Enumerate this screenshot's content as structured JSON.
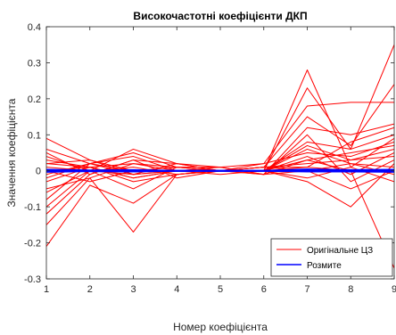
{
  "chart_data": {
    "type": "line",
    "title": "Високочастотні коефіцієнти ДКП",
    "xlabel": "Номер коефіцієнта",
    "ylabel": "Значення коефіцієнта",
    "xlim": [
      1,
      9
    ],
    "ylim": [
      -0.3,
      0.4
    ],
    "x_ticks": [
      "1",
      "2",
      "3",
      "4",
      "5",
      "6",
      "7",
      "8",
      "9"
    ],
    "y_ticks": [
      "0.4",
      "0.3",
      "0.2",
      "0.1",
      "0",
      "-0.1",
      "-0.2",
      "-0.3"
    ],
    "grid": false,
    "legend_position": "bottom-right",
    "legend": [
      {
        "label": "Оригінальне ЦЗ",
        "color": "#ff0000"
      },
      {
        "label": "Розмите",
        "color": "#0000ff"
      }
    ],
    "x": [
      1,
      2,
      3,
      4,
      5,
      6,
      7,
      8,
      9
    ],
    "series_groups": [
      {
        "name": "Оригінальне ЦЗ",
        "color": "#ff0000",
        "lines": [
          [
            -0.21,
            -0.04,
            -0.09,
            -0.01,
            0.0,
            0.0,
            0.03,
            0.0,
            -0.27
          ],
          [
            0.09,
            0.03,
            -0.01,
            0.0,
            0.0,
            0.0,
            0.28,
            0.01,
            0.09
          ],
          [
            0.06,
            0.02,
            0.05,
            0.01,
            0.0,
            0.0,
            0.23,
            0.06,
            0.35
          ],
          [
            -0.15,
            -0.02,
            -0.17,
            -0.01,
            0.0,
            0.0,
            0.01,
            0.0,
            0.0
          ],
          [
            -0.1,
            0.0,
            0.06,
            0.02,
            0.0,
            0.01,
            0.15,
            0.07,
            0.24
          ],
          [
            -0.12,
            -0.01,
            0.03,
            0.02,
            0.01,
            0.02,
            0.18,
            0.19,
            0.19
          ],
          [
            -0.08,
            0.02,
            0.04,
            0.0,
            0.0,
            -0.01,
            0.12,
            0.1,
            0.13
          ],
          [
            0.02,
            0.03,
            0.0,
            0.0,
            0.0,
            0.0,
            0.08,
            0.06,
            0.1
          ],
          [
            0.03,
            0.01,
            -0.02,
            0.0,
            0.0,
            0.02,
            0.05,
            0.04,
            0.08
          ],
          [
            0.01,
            0.0,
            -0.05,
            0.01,
            0.0,
            0.0,
            0.04,
            -0.01,
            0.05
          ],
          [
            -0.03,
            0.01,
            -0.03,
            -0.01,
            0.0,
            0.01,
            0.02,
            0.03,
            0.06
          ],
          [
            -0.05,
            -0.02,
            0.02,
            0.0,
            0.01,
            -0.01,
            0.1,
            -0.03,
            0.03
          ],
          [
            0.04,
            0.0,
            0.01,
            -0.01,
            0.0,
            0.0,
            0.06,
            0.02,
            0.01
          ],
          [
            -0.01,
            0.02,
            -0.01,
            0.02,
            0.0,
            0.01,
            0.0,
            -0.05,
            0.0
          ],
          [
            0.0,
            -0.03,
            0.0,
            0.0,
            -0.01,
            0.0,
            -0.02,
            0.01,
            -0.03
          ],
          [
            0.02,
            0.01,
            0.02,
            0.01,
            0.01,
            -0.01,
            0.03,
            0.05,
            0.07
          ],
          [
            -0.06,
            0.0,
            -0.01,
            0.0,
            0.0,
            0.0,
            -0.03,
            -0.1,
            0.02
          ],
          [
            0.05,
            -0.01,
            0.03,
            -0.02,
            0.0,
            0.01,
            0.01,
            0.08,
            0.12
          ],
          [
            -0.02,
            0.02,
            0.0,
            0.01,
            0.0,
            0.0,
            0.07,
            0.03,
            0.04
          ],
          [
            0.0,
            0.01,
            -0.02,
            0.0,
            0.0,
            -0.01,
            0.0,
            0.02,
            -0.01
          ]
        ]
      },
      {
        "name": "Розмите",
        "color": "#0000ff",
        "lines": [
          [
            0.0,
            0.0,
            0.0,
            0.0,
            0.0,
            0.0,
            0.0,
            0.0,
            0.0
          ],
          [
            0.003,
            0.001,
            0.002,
            0.0,
            0.0,
            0.0,
            0.004,
            0.002,
            0.003
          ],
          [
            -0.003,
            -0.001,
            -0.002,
            0.0,
            0.0,
            0.0,
            -0.002,
            -0.002,
            -0.003
          ]
        ]
      }
    ]
  }
}
